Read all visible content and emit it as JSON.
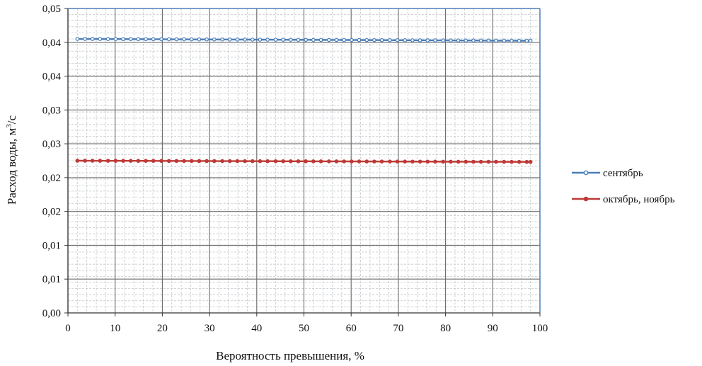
{
  "chart_data": {
    "type": "line",
    "title": "",
    "xlabel": "Вероятность превышения, %",
    "ylabel_main": "Расход воды, м",
    "ylabel_sup": "3",
    "ylabel_tail": "/с",
    "xlim": [
      0,
      100
    ],
    "ylim": [
      0,
      0.05
    ],
    "x_ticks": [
      "0",
      "10",
      "20",
      "30",
      "40",
      "50",
      "60",
      "70",
      "80",
      "90",
      "100"
    ],
    "y_ticks": [
      "0,00",
      "0,01",
      "0,01",
      "0,02",
      "0,02",
      "0,03",
      "0,03",
      "0,04",
      "0,04",
      "0,05"
    ],
    "grid": true,
    "legend_position": "right",
    "x": [
      2,
      3.6,
      5.2,
      6.8,
      8.5,
      10.1,
      11.7,
      13.3,
      14.9,
      16.5,
      18.1,
      19.8,
      21.4,
      23.0,
      24.6,
      26.2,
      27.8,
      29.4,
      31.0,
      32.7,
      34.3,
      35.9,
      37.5,
      39.1,
      40.7,
      42.3,
      44.0,
      45.6,
      47.2,
      48.8,
      50.4,
      52.0,
      53.6,
      55.3,
      56.9,
      58.5,
      60.1,
      61.7,
      63.3,
      64.9,
      66.5,
      68.2,
      69.8,
      71.4,
      73.0,
      74.6,
      76.2,
      77.8,
      79.5,
      81.1,
      82.7,
      84.3,
      85.9,
      87.5,
      89.1,
      90.7,
      92.4,
      94.0,
      95.6,
      97.2,
      98.0
    ],
    "series": [
      {
        "name": "сентябрь",
        "color": "#4a7ebb",
        "y_start": 0.045,
        "y_end": 0.0447
      },
      {
        "name": "октябрь, ноябрь",
        "color": "#be3a37",
        "y_start": 0.025,
        "y_end": 0.0248
      }
    ]
  }
}
